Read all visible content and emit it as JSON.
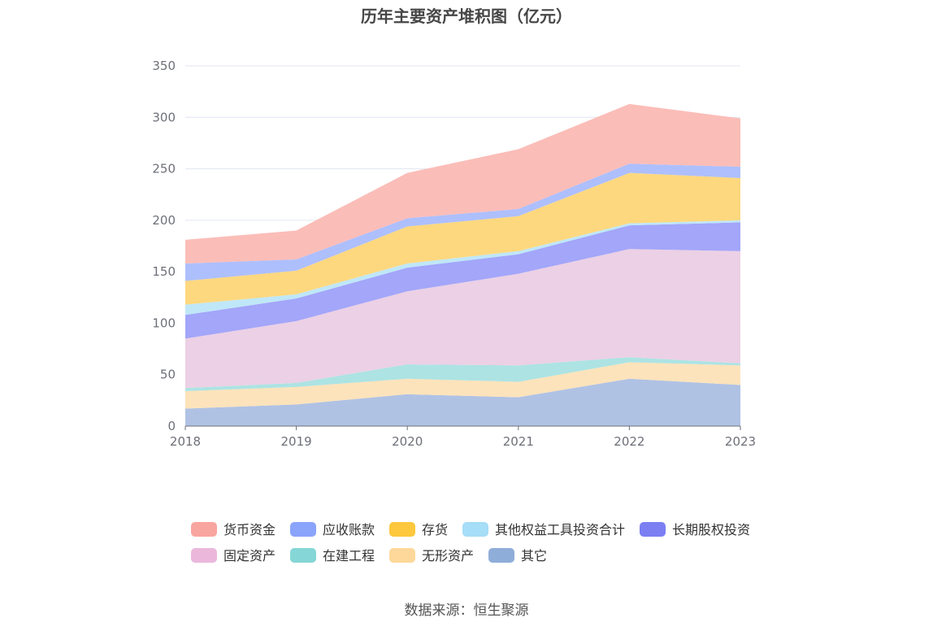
{
  "chart_data": {
    "type": "area",
    "title": "历年主要资产堆积图（亿元）",
    "stacked": true,
    "x": [
      "2018",
      "2019",
      "2020",
      "2021",
      "2022",
      "2023"
    ],
    "ylim": [
      0,
      350
    ],
    "yticks": [
      0,
      50,
      100,
      150,
      200,
      250,
      300,
      350
    ],
    "grid": true,
    "legend_position": "bottom",
    "series": [
      {
        "name": "其它",
        "values": [
          17,
          21,
          31,
          28,
          46,
          40
        ],
        "fill": "#b0c2e4",
        "legend_color": "#8fadd9"
      },
      {
        "name": "无形资产",
        "values": [
          17,
          17,
          15,
          15,
          16,
          19
        ],
        "fill": "#fde3bb",
        "legend_color": "#fdd89a"
      },
      {
        "name": "在建工程",
        "values": [
          3,
          4,
          14,
          16,
          5,
          2
        ],
        "fill": "#ade3e3",
        "legend_color": "#85d6d6"
      },
      {
        "name": "固定资产",
        "values": [
          48,
          60,
          71,
          89,
          105,
          109
        ],
        "fill": "#ecd0e5",
        "legend_color": "#ebb8dc"
      },
      {
        "name": "长期股权投资",
        "values": [
          23,
          22,
          23,
          19,
          23,
          28
        ],
        "fill": "#a3a6f9",
        "legend_color": "#7b7ff2"
      },
      {
        "name": "其他权益工具投资合计",
        "values": [
          10,
          4,
          4,
          3,
          2,
          2
        ],
        "fill": "#bfe7f8",
        "legend_color": "#a6ddf7"
      },
      {
        "name": "存货",
        "values": [
          23,
          23,
          36,
          34,
          49,
          41
        ],
        "fill": "#fed87f",
        "legend_color": "#fdc83e"
      },
      {
        "name": "应收账款",
        "values": [
          17,
          11,
          8,
          7,
          9,
          11
        ],
        "fill": "#aebffd",
        "legend_color": "#8aa4fb"
      },
      {
        "name": "货币资金",
        "values": [
          23,
          28,
          44,
          58,
          58,
          47
        ],
        "fill": "#fbbdb8",
        "legend_color": "#f9a59f"
      }
    ],
    "legend_order": [
      "货币资金",
      "应收账款",
      "存货",
      "其他权益工具投资合计",
      "长期股权投资",
      "固定资产",
      "在建工程",
      "无形资产",
      "其它"
    ]
  },
  "footer": {
    "source": "数据来源：恒生聚源"
  }
}
